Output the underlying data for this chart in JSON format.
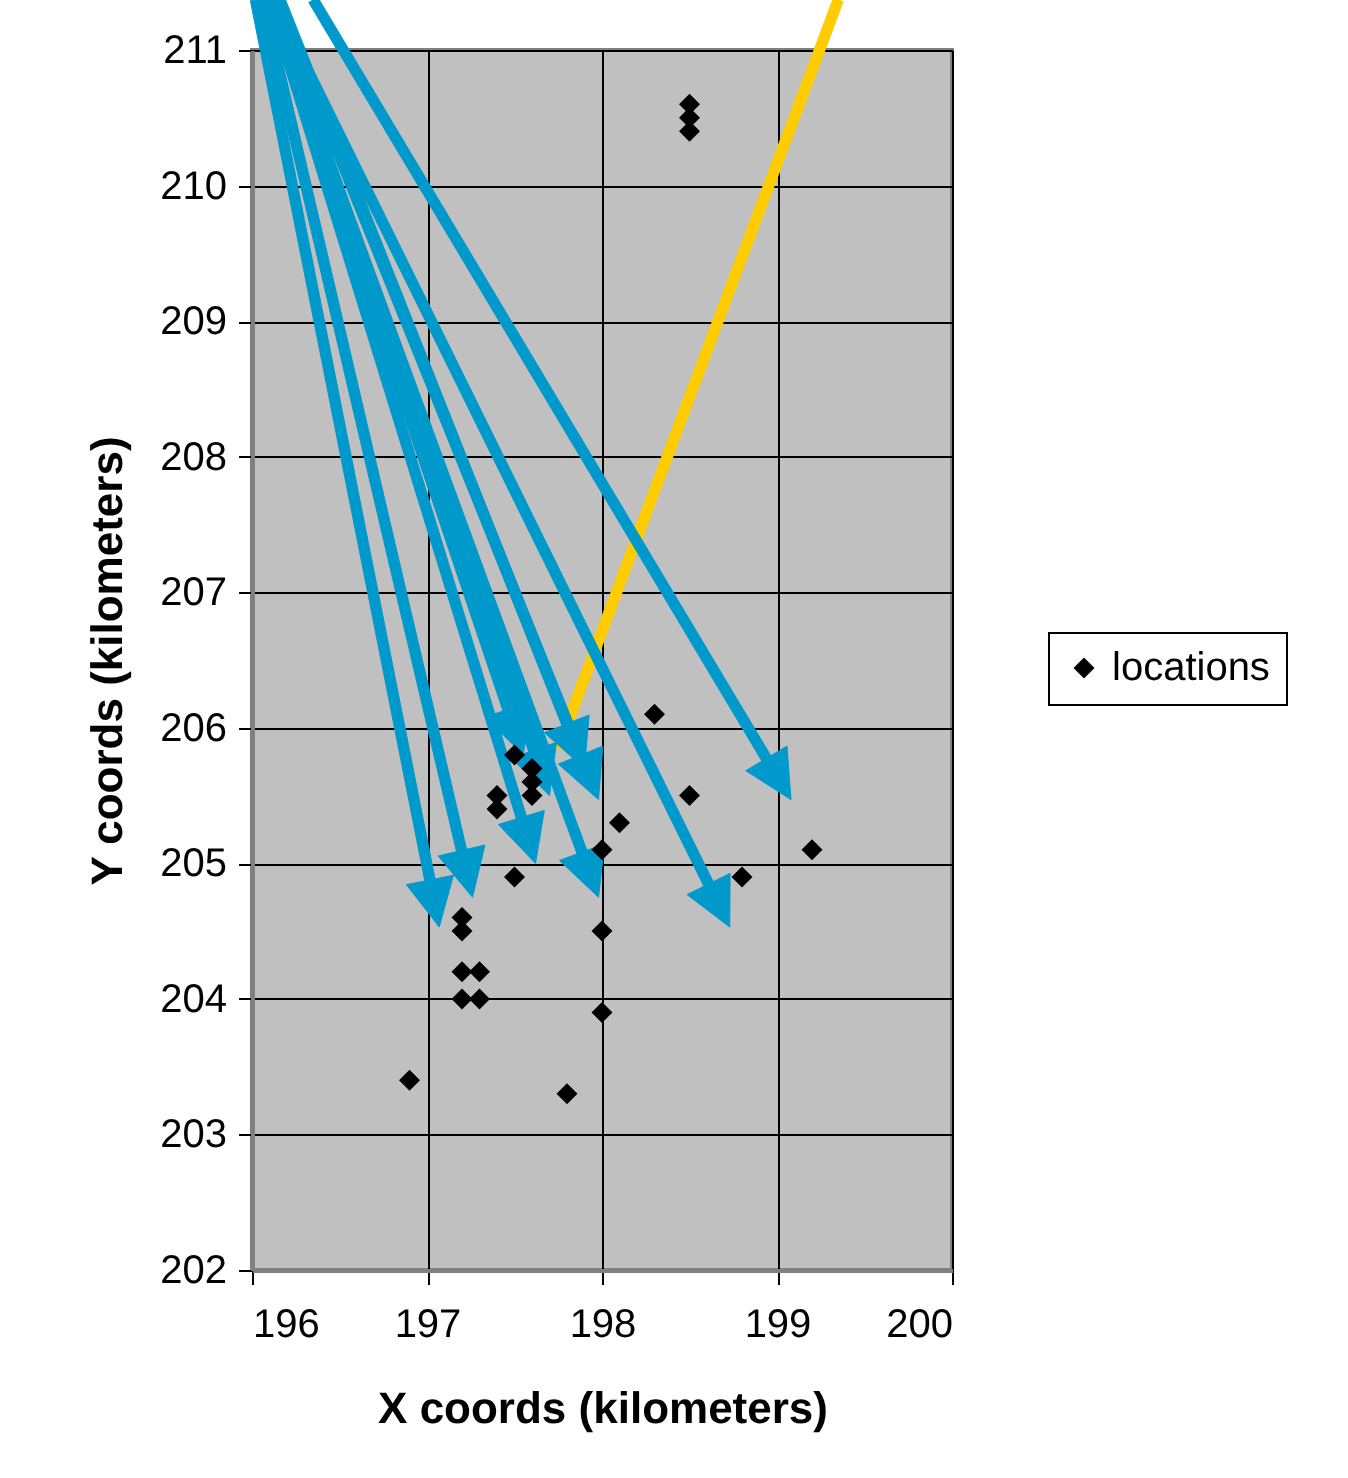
{
  "chart_data": {
    "type": "scatter",
    "xlabel": "X coords (kilometers)",
    "ylabel": "Y coords (kilometers)",
    "xlim": [
      196,
      200
    ],
    "ylim": [
      202,
      211
    ],
    "xticks": [
      196,
      197,
      198,
      199,
      200
    ],
    "yticks": [
      202,
      203,
      204,
      205,
      206,
      207,
      208,
      209,
      210,
      211
    ],
    "grid": true,
    "legend": "right",
    "marker": "diamond",
    "series": [
      {
        "name": "locations",
        "color": "#000000",
        "x": [
          196.9,
          197.8,
          198.0,
          198.0,
          198.0,
          198.1,
          198.3,
          198.5,
          198.8,
          199.2,
          197.5,
          197.2,
          197.2,
          197.2,
          197.3,
          197.2,
          197.3,
          197.4,
          197.4,
          197.5,
          197.6,
          197.6,
          197.6,
          198.5,
          198.5,
          198.5
        ],
        "values": [
          203.4,
          203.3,
          203.9,
          204.5,
          205.1,
          205.3,
          206.1,
          205.5,
          204.9,
          205.1,
          204.9,
          204.6,
          204.5,
          204.2,
          204.2,
          204.0,
          204.0,
          205.5,
          205.4,
          205.8,
          205.7,
          205.6,
          205.5,
          210.6,
          210.5,
          210.4
        ]
      }
    ]
  }
}
